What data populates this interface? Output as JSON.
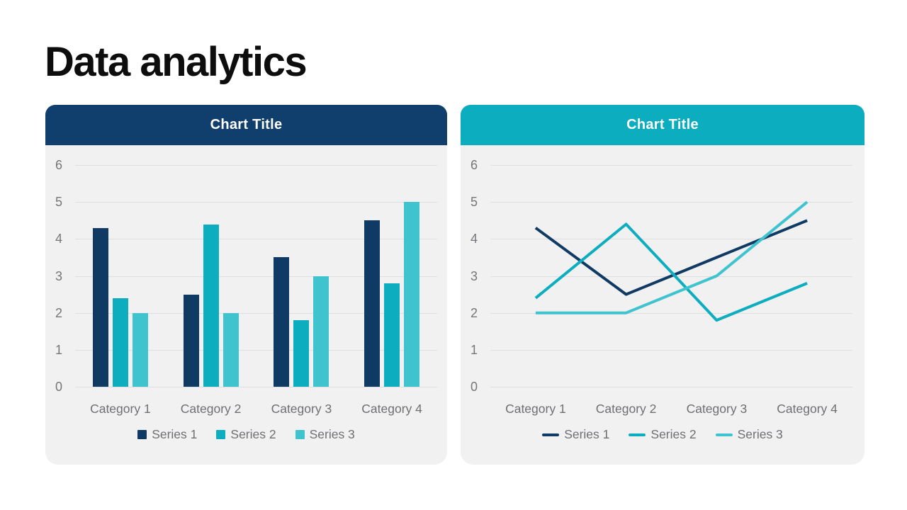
{
  "slide": {
    "title": "Data analytics"
  },
  "colors": {
    "background": "#ffffff",
    "panel_bg": "#f1f1f2",
    "grid_line": "#dededf",
    "axis_text": "#76767a",
    "header_text": "#ffffff",
    "title_text": "#0d0d0d",
    "series1": "#0e3a64",
    "series2": "#0dadc0",
    "series3": "#3fc3ce"
  },
  "chart_data": [
    {
      "type": "bar",
      "title": "Chart Title",
      "header_color": "#113f6d",
      "categories": [
        "Category 1",
        "Category 2",
        "Category 3",
        "Category 4"
      ],
      "series": [
        {
          "name": "Series 1",
          "color": "#0e3a64",
          "values": [
            4.3,
            2.5,
            3.5,
            4.5
          ]
        },
        {
          "name": "Series 2",
          "color": "#0dadc0",
          "values": [
            2.4,
            4.4,
            1.8,
            2.8
          ]
        },
        {
          "name": "Series 3",
          "color": "#3fc3ce",
          "values": [
            2.0,
            2.0,
            3.0,
            5.0
          ]
        }
      ],
      "xlabel": "",
      "ylabel": "",
      "ylim": [
        0,
        6
      ],
      "yticks": [
        0,
        1,
        2,
        3,
        4,
        5,
        6
      ],
      "grid": true,
      "legend_position": "bottom"
    },
    {
      "type": "line",
      "title": "Chart Title",
      "header_color": "#0dadc0",
      "categories": [
        "Category 1",
        "Category 2",
        "Category 3",
        "Category 4"
      ],
      "series": [
        {
          "name": "Series 1",
          "color": "#0e3a64",
          "values": [
            4.3,
            2.5,
            3.5,
            4.5
          ]
        },
        {
          "name": "Series 2",
          "color": "#0dadc0",
          "values": [
            2.4,
            4.4,
            1.8,
            2.8
          ]
        },
        {
          "name": "Series 3",
          "color": "#3fc3ce",
          "values": [
            2.0,
            2.0,
            3.0,
            5.0
          ]
        }
      ],
      "xlabel": "",
      "ylabel": "",
      "ylim": [
        0,
        6
      ],
      "yticks": [
        0,
        1,
        2,
        3,
        4,
        5,
        6
      ],
      "grid": true,
      "legend_position": "bottom"
    }
  ]
}
